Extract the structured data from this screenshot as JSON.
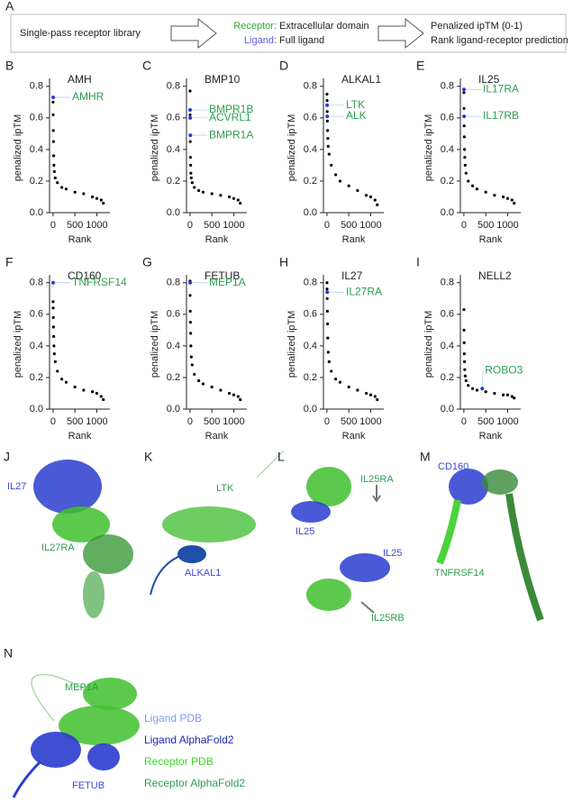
{
  "panel_a": {
    "label": "A",
    "box1": "Single-pass receptor library",
    "receptor_key": "Receptor:",
    "receptor_value": "Extracellular domain",
    "ligand_key": "Ligand:",
    "ligand_value": "Full ligand",
    "out1": "Penalized ipTM (0-1)",
    "out2": "Rank ligand-receptor prediction"
  },
  "chart_data": [
    {
      "type": "scatter",
      "panel": "B",
      "title": "AMH",
      "xlabel": "Rank",
      "ylabel": "penalized ipTM",
      "xlim": [
        -80,
        1300
      ],
      "xticks": [
        0,
        500,
        1000
      ],
      "ylim": [
        0,
        0.85
      ],
      "yticks": [
        {
          "value": 0,
          "label": "0.0"
        },
        0.2,
        0.4,
        0.6,
        0.8
      ],
      "color": "#000000",
      "x": [
        1,
        3,
        6,
        10,
        15,
        20,
        30,
        50,
        100,
        200,
        300,
        500,
        700,
        900,
        1000,
        1100,
        1150
      ],
      "values": [
        0.7,
        0.62,
        0.52,
        0.45,
        0.36,
        0.3,
        0.26,
        0.22,
        0.19,
        0.16,
        0.15,
        0.13,
        0.12,
        0.1,
        0.09,
        0.08,
        0.06
      ],
      "highlights": {
        "names": [
          "AMHR"
        ],
        "x": [
          3
        ],
        "values": [
          0.73
        ],
        "color": "#2b39d6",
        "label_color": "#2e9e4f"
      }
    },
    {
      "type": "scatter",
      "panel": "C",
      "title": "BMP10",
      "xlabel": "Rank",
      "ylabel": "penalized ipTM",
      "xlim": [
        -80,
        1300
      ],
      "xticks": [
        0,
        500,
        1000
      ],
      "ylim": [
        0,
        0.85
      ],
      "yticks": [
        {
          "value": 0,
          "label": "0.0"
        },
        0.2,
        0.4,
        0.6,
        0.8
      ],
      "color": "#000000",
      "x": [
        1,
        3,
        6,
        10,
        15,
        20,
        30,
        50,
        100,
        200,
        300,
        500,
        700,
        900,
        1000,
        1100,
        1150
      ],
      "values": [
        0.77,
        0.62,
        0.45,
        0.35,
        0.3,
        0.25,
        0.22,
        0.19,
        0.16,
        0.14,
        0.13,
        0.12,
        0.11,
        0.1,
        0.09,
        0.08,
        0.06
      ],
      "highlights": {
        "names": [
          "BMPR1B",
          "ACVRL1",
          "BMPR1A"
        ],
        "x": [
          2,
          4,
          8
        ],
        "values": [
          0.65,
          0.6,
          0.49
        ],
        "color": "#2b39d6",
        "label_color": "#2e9e4f"
      }
    },
    {
      "type": "scatter",
      "panel": "D",
      "title": "ALKAL1",
      "xlabel": "Rank",
      "ylabel": "penalized ipTM",
      "xlim": [
        -80,
        1300
      ],
      "xticks": [
        0,
        500,
        1000
      ],
      "ylim": [
        0,
        0.85
      ],
      "yticks": [
        {
          "value": 0,
          "label": "0.0"
        },
        0.2,
        0.4,
        0.6,
        0.8
      ],
      "color": "#000000",
      "x": [
        1,
        3,
        6,
        10,
        15,
        20,
        30,
        50,
        100,
        200,
        300,
        500,
        700,
        900,
        1000,
        1100,
        1150
      ],
      "values": [
        0.75,
        0.71,
        0.64,
        0.58,
        0.52,
        0.47,
        0.42,
        0.37,
        0.3,
        0.24,
        0.2,
        0.17,
        0.14,
        0.11,
        0.1,
        0.08,
        0.05
      ],
      "highlights": {
        "names": [
          "LTK",
          "ALK"
        ],
        "x": [
          3,
          6
        ],
        "values": [
          0.68,
          0.61
        ],
        "color": "#2b39d6",
        "label_color": "#2e9e4f"
      }
    },
    {
      "type": "scatter",
      "panel": "E",
      "title": "IL25",
      "xlabel": "Rank",
      "ylabel": "penalized ipTM",
      "xlim": [
        -80,
        1300
      ],
      "xticks": [
        0,
        500,
        1000
      ],
      "ylim": [
        0,
        0.85
      ],
      "yticks": [
        {
          "value": 0,
          "label": "0.0"
        },
        0.2,
        0.4,
        0.6,
        0.8
      ],
      "color": "#000000",
      "x": [
        1,
        3,
        6,
        10,
        15,
        20,
        30,
        50,
        100,
        200,
        300,
        500,
        700,
        900,
        1000,
        1100,
        1150
      ],
      "values": [
        0.76,
        0.66,
        0.55,
        0.48,
        0.4,
        0.35,
        0.3,
        0.25,
        0.2,
        0.17,
        0.15,
        0.13,
        0.11,
        0.1,
        0.09,
        0.08,
        0.06
      ],
      "highlights": {
        "names": [
          "IL17RA",
          "IL17RB"
        ],
        "x": [
          2,
          4
        ],
        "values": [
          0.78,
          0.61
        ],
        "color": "#2b39d6",
        "label_color": "#2e9e4f"
      }
    },
    {
      "type": "scatter",
      "panel": "F",
      "title": "CD160",
      "xlabel": "Rank",
      "ylabel": "penalized ipTM",
      "xlim": [
        -80,
        1300
      ],
      "xticks": [
        0,
        500,
        1000
      ],
      "ylim": [
        0,
        0.85
      ],
      "yticks": [
        {
          "value": 0,
          "label": "0.0"
        },
        0.2,
        0.4,
        0.6,
        0.8
      ],
      "color": "#000000",
      "x": [
        1,
        3,
        6,
        10,
        15,
        20,
        30,
        50,
        100,
        200,
        300,
        500,
        700,
        900,
        1000,
        1100,
        1150
      ],
      "values": [
        0.68,
        0.64,
        0.58,
        0.52,
        0.46,
        0.4,
        0.35,
        0.3,
        0.24,
        0.19,
        0.17,
        0.14,
        0.12,
        0.11,
        0.1,
        0.08,
        0.06
      ],
      "highlights": {
        "names": [
          "TNFRSF14"
        ],
        "x": [
          1
        ],
        "values": [
          0.8
        ],
        "color": "#2b39d6",
        "label_color": "#2e9e4f"
      }
    },
    {
      "type": "scatter",
      "panel": "G",
      "title": "FETUB",
      "xlabel": "Rank",
      "ylabel": "penalized ipTM",
      "xlim": [
        -80,
        1300
      ],
      "xticks": [
        0,
        500,
        1000
      ],
      "ylim": [
        0,
        0.85
      ],
      "yticks": [
        {
          "value": 0,
          "label": "0.0"
        },
        0.2,
        0.4,
        0.6,
        0.8
      ],
      "color": "#000000",
      "x": [
        1,
        3,
        6,
        10,
        15,
        20,
        30,
        50,
        100,
        200,
        300,
        500,
        700,
        900,
        1000,
        1100,
        1150
      ],
      "values": [
        0.81,
        0.72,
        0.62,
        0.55,
        0.48,
        0.4,
        0.33,
        0.28,
        0.22,
        0.18,
        0.16,
        0.14,
        0.12,
        0.1,
        0.09,
        0.08,
        0.06
      ],
      "highlights": {
        "names": [
          "MEP1A"
        ],
        "x": [
          3
        ],
        "values": [
          0.8
        ],
        "color": "#2b39d6",
        "label_color": "#2e9e4f"
      }
    },
    {
      "type": "scatter",
      "panel": "H",
      "title": "IL27",
      "xlabel": "Rank",
      "ylabel": "penalized ipTM",
      "xlim": [
        -80,
        1300
      ],
      "xticks": [
        0,
        500,
        1000
      ],
      "ylim": [
        0,
        0.85
      ],
      "yticks": [
        {
          "value": 0,
          "label": "0.0"
        },
        0.2,
        0.4,
        0.6,
        0.8
      ],
      "color": "#000000",
      "x": [
        1,
        3,
        6,
        10,
        15,
        20,
        30,
        50,
        100,
        200,
        300,
        500,
        700,
        900,
        1000,
        1100,
        1150
      ],
      "values": [
        0.8,
        0.76,
        0.7,
        0.62,
        0.54,
        0.45,
        0.36,
        0.3,
        0.24,
        0.19,
        0.17,
        0.14,
        0.12,
        0.1,
        0.09,
        0.08,
        0.06
      ],
      "highlights": {
        "names": [
          "IL27RA"
        ],
        "x": [
          5
        ],
        "values": [
          0.74
        ],
        "color": "#2b39d6",
        "label_color": "#2e9e4f"
      }
    },
    {
      "type": "scatter",
      "panel": "I",
      "title": "NELL2",
      "xlabel": "Rank",
      "ylabel": "penalized ipTM",
      "xlim": [
        -80,
        1300
      ],
      "xticks": [
        0,
        500,
        1000
      ],
      "ylim": [
        0,
        0.85
      ],
      "yticks": [
        {
          "value": 0,
          "label": "0.0"
        },
        0.2,
        0.4,
        0.6,
        0.8
      ],
      "color": "#000000",
      "x": [
        1,
        3,
        6,
        10,
        15,
        20,
        30,
        50,
        100,
        200,
        300,
        500,
        700,
        900,
        1000,
        1100,
        1150
      ],
      "values": [
        0.63,
        0.5,
        0.42,
        0.35,
        0.3,
        0.25,
        0.21,
        0.18,
        0.15,
        0.13,
        0.12,
        0.11,
        0.1,
        0.09,
        0.09,
        0.08,
        0.07
      ],
      "highlights": {
        "names": [
          "ROBO3"
        ],
        "x": [
          420
        ],
        "values": [
          0.13
        ],
        "color": "#2b39d6",
        "label_color": "#2e9e4f"
      }
    }
  ],
  "structures": {
    "j": {
      "label": "J",
      "ligand": "IL27",
      "receptor": "IL27RA"
    },
    "k": {
      "label": "K",
      "receptor": "LTK",
      "ligand": "ALKAL1"
    },
    "l": {
      "label": "L",
      "receptor1": "IL25RA",
      "ligand1": "IL25",
      "ligand2": "IL25",
      "receptor2": "IL25RB"
    },
    "m": {
      "label": "M",
      "ligand": "CD160",
      "receptor": "TNFRSF14"
    },
    "n": {
      "label": "N",
      "receptor": "MEP1A",
      "ligand": "FETUB"
    }
  },
  "legend": [
    "Ligand PDB",
    "Ligand AlphaFold2",
    "Receptor PDB",
    "Receptor AlphaFold2"
  ]
}
